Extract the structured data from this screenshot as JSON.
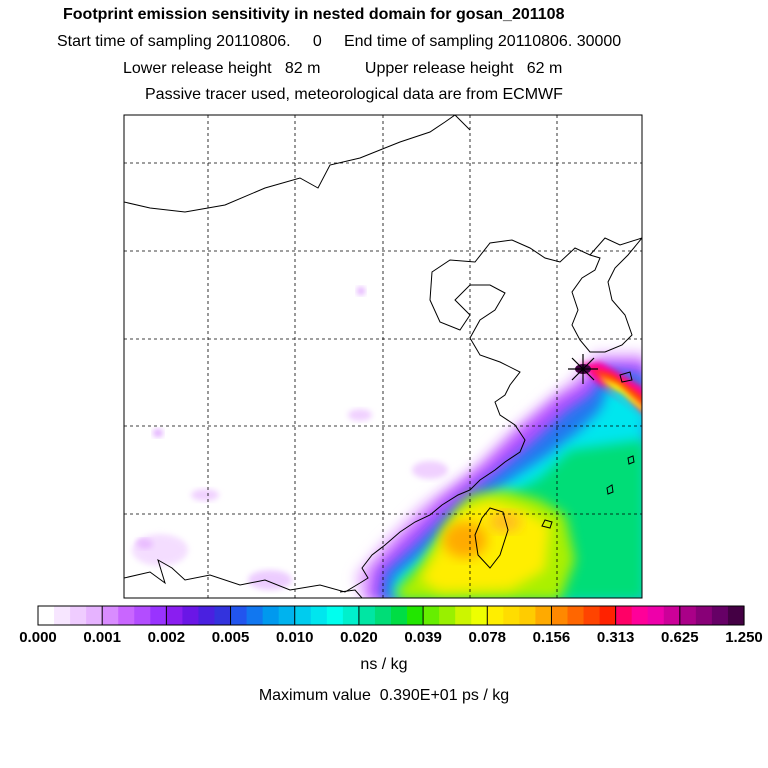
{
  "header": {
    "title": "Footprint emission sensitivity in nested domain for gosan_201108",
    "line2": "Start time of sampling 20110806.     0     End time of sampling 20110806. 30000",
    "line3": "Lower release height   82 m          Upper release height   62 m",
    "line4": "Passive tracer used, meteorological data are from ECMWF"
  },
  "colorbar": {
    "tick_labels": [
      "0.000",
      "0.001",
      "0.002",
      "0.005",
      "0.010",
      "0.020",
      "0.039",
      "0.078",
      "0.156",
      "0.313",
      "0.625",
      "1.250"
    ],
    "colors": [
      "#ffffff",
      "#f7e6ff",
      "#efccff",
      "#e6b3ff",
      "#d98cff",
      "#c966ff",
      "#b34dff",
      "#9933ff",
      "#8a1ef0",
      "#6a16e6",
      "#4a20e0",
      "#3333dd",
      "#2255ee",
      "#1177f0",
      "#0099ee",
      "#00b3ee",
      "#00ccee",
      "#00e6ee",
      "#00ffee",
      "#00f0cc",
      "#00e6a3",
      "#00dd77",
      "#00dd44",
      "#22e600",
      "#66ee00",
      "#99f000",
      "#ccf500",
      "#eeff00",
      "#ffee00",
      "#ffdd00",
      "#ffcc00",
      "#ffaa00",
      "#ff8800",
      "#ff6600",
      "#ff4400",
      "#ff2200",
      "#ff0066",
      "#ff0099",
      "#ee00aa",
      "#cc0099",
      "#aa0088",
      "#880077",
      "#660066",
      "#440044"
    ],
    "units": "ns / kg"
  },
  "footer": {
    "max_value": "Maximum value  0.390E+01 ps / kg"
  }
}
